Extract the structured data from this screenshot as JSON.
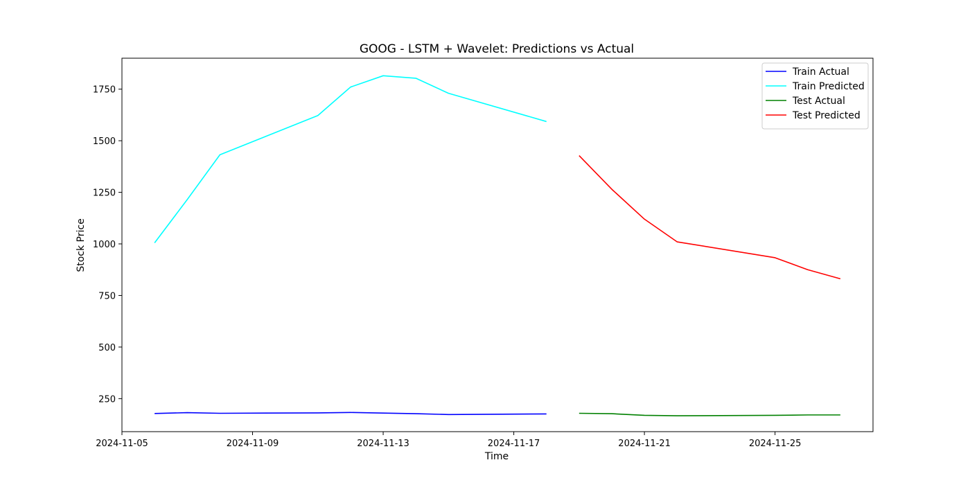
{
  "chart_data": {
    "type": "line",
    "title": "GOOG - LSTM + Wavelet: Predictions vs Actual",
    "xlabel": "Time",
    "ylabel": "Stock Price",
    "xlim": [
      "2024-11-05",
      "2024-11-28"
    ],
    "ylim": [
      90,
      1900
    ],
    "x_ticks": [
      "2024-11-05",
      "2024-11-09",
      "2024-11-13",
      "2024-11-17",
      "2024-11-21",
      "2024-11-25"
    ],
    "y_ticks": [
      250,
      500,
      750,
      1000,
      1250,
      1500,
      1750
    ],
    "grid": false,
    "legend_position": "top-right",
    "series": [
      {
        "name": "Train Actual",
        "color": "#0000ff",
        "points": [
          {
            "x": "2024-11-06",
            "y": 178
          },
          {
            "x": "2024-11-07",
            "y": 182
          },
          {
            "x": "2024-11-08",
            "y": 179
          },
          {
            "x": "2024-11-11",
            "y": 181
          },
          {
            "x": "2024-11-12",
            "y": 183
          },
          {
            "x": "2024-11-13",
            "y": 180
          },
          {
            "x": "2024-11-14",
            "y": 177
          },
          {
            "x": "2024-11-15",
            "y": 173
          },
          {
            "x": "2024-11-18",
            "y": 176
          }
        ]
      },
      {
        "name": "Train Predicted",
        "color": "#00ffff",
        "points": [
          {
            "x": "2024-11-06",
            "y": 1005
          },
          {
            "x": "2024-11-07",
            "y": 1215
          },
          {
            "x": "2024-11-08",
            "y": 1432
          },
          {
            "x": "2024-11-11",
            "y": 1622
          },
          {
            "x": "2024-11-12",
            "y": 1760
          },
          {
            "x": "2024-11-13",
            "y": 1815
          },
          {
            "x": "2024-11-14",
            "y": 1803
          },
          {
            "x": "2024-11-15",
            "y": 1730
          },
          {
            "x": "2024-11-18",
            "y": 1593
          }
        ]
      },
      {
        "name": "Test Actual",
        "color": "#008000",
        "points": [
          {
            "x": "2024-11-19",
            "y": 179
          },
          {
            "x": "2024-11-20",
            "y": 177
          },
          {
            "x": "2024-11-21",
            "y": 169
          },
          {
            "x": "2024-11-22",
            "y": 167
          },
          {
            "x": "2024-11-25",
            "y": 169
          },
          {
            "x": "2024-11-26",
            "y": 171
          },
          {
            "x": "2024-11-27",
            "y": 171
          }
        ]
      },
      {
        "name": "Test Predicted",
        "color": "#ff0000",
        "points": [
          {
            "x": "2024-11-19",
            "y": 1428
          },
          {
            "x": "2024-11-20",
            "y": 1265
          },
          {
            "x": "2024-11-21",
            "y": 1120
          },
          {
            "x": "2024-11-22",
            "y": 1010
          },
          {
            "x": "2024-11-25",
            "y": 933
          },
          {
            "x": "2024-11-26",
            "y": 875
          },
          {
            "x": "2024-11-27",
            "y": 831
          }
        ]
      }
    ]
  }
}
